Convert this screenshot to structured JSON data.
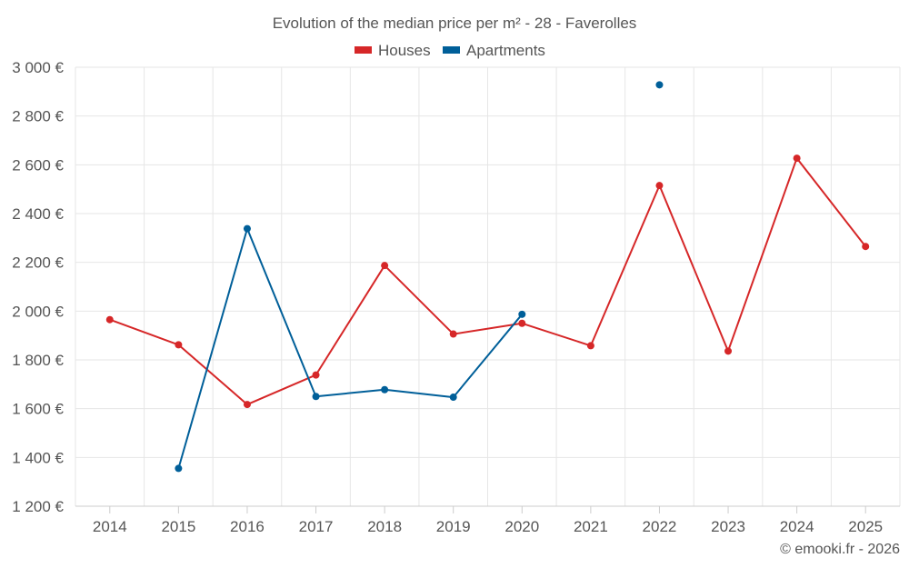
{
  "chart_data": {
    "type": "line",
    "title": "Evolution of the median price per m² - 28 - Faverolles",
    "xlabel": "",
    "ylabel": "",
    "categories": [
      "2014",
      "2015",
      "2016",
      "2017",
      "2018",
      "2019",
      "2020",
      "2021",
      "2022",
      "2023",
      "2024",
      "2025"
    ],
    "y_ticks": [
      1200,
      1400,
      1600,
      1800,
      2000,
      2200,
      2400,
      2600,
      2800,
      3000
    ],
    "y_tick_labels": [
      "1 200 €",
      "1 400 €",
      "1 600 €",
      "1 800 €",
      "2 000 €",
      "2 200 €",
      "2 400 €",
      "2 600 €",
      "2 800 €",
      "3 000 €"
    ],
    "ylim": [
      1200,
      3000
    ],
    "grid": true,
    "legend_position": "top",
    "series": [
      {
        "name": "Houses",
        "color": "#d62728",
        "values": [
          1965,
          1862,
          1617,
          1738,
          2187,
          1906,
          1950,
          1858,
          2515,
          1836,
          2627,
          2265
        ]
      },
      {
        "name": "Apartments",
        "color": "#005f99",
        "values": [
          null,
          1355,
          2338,
          1650,
          1678,
          1647,
          1987,
          null,
          2928,
          null,
          null,
          null
        ]
      }
    ]
  },
  "credit": "© emooki.fr - 2026"
}
